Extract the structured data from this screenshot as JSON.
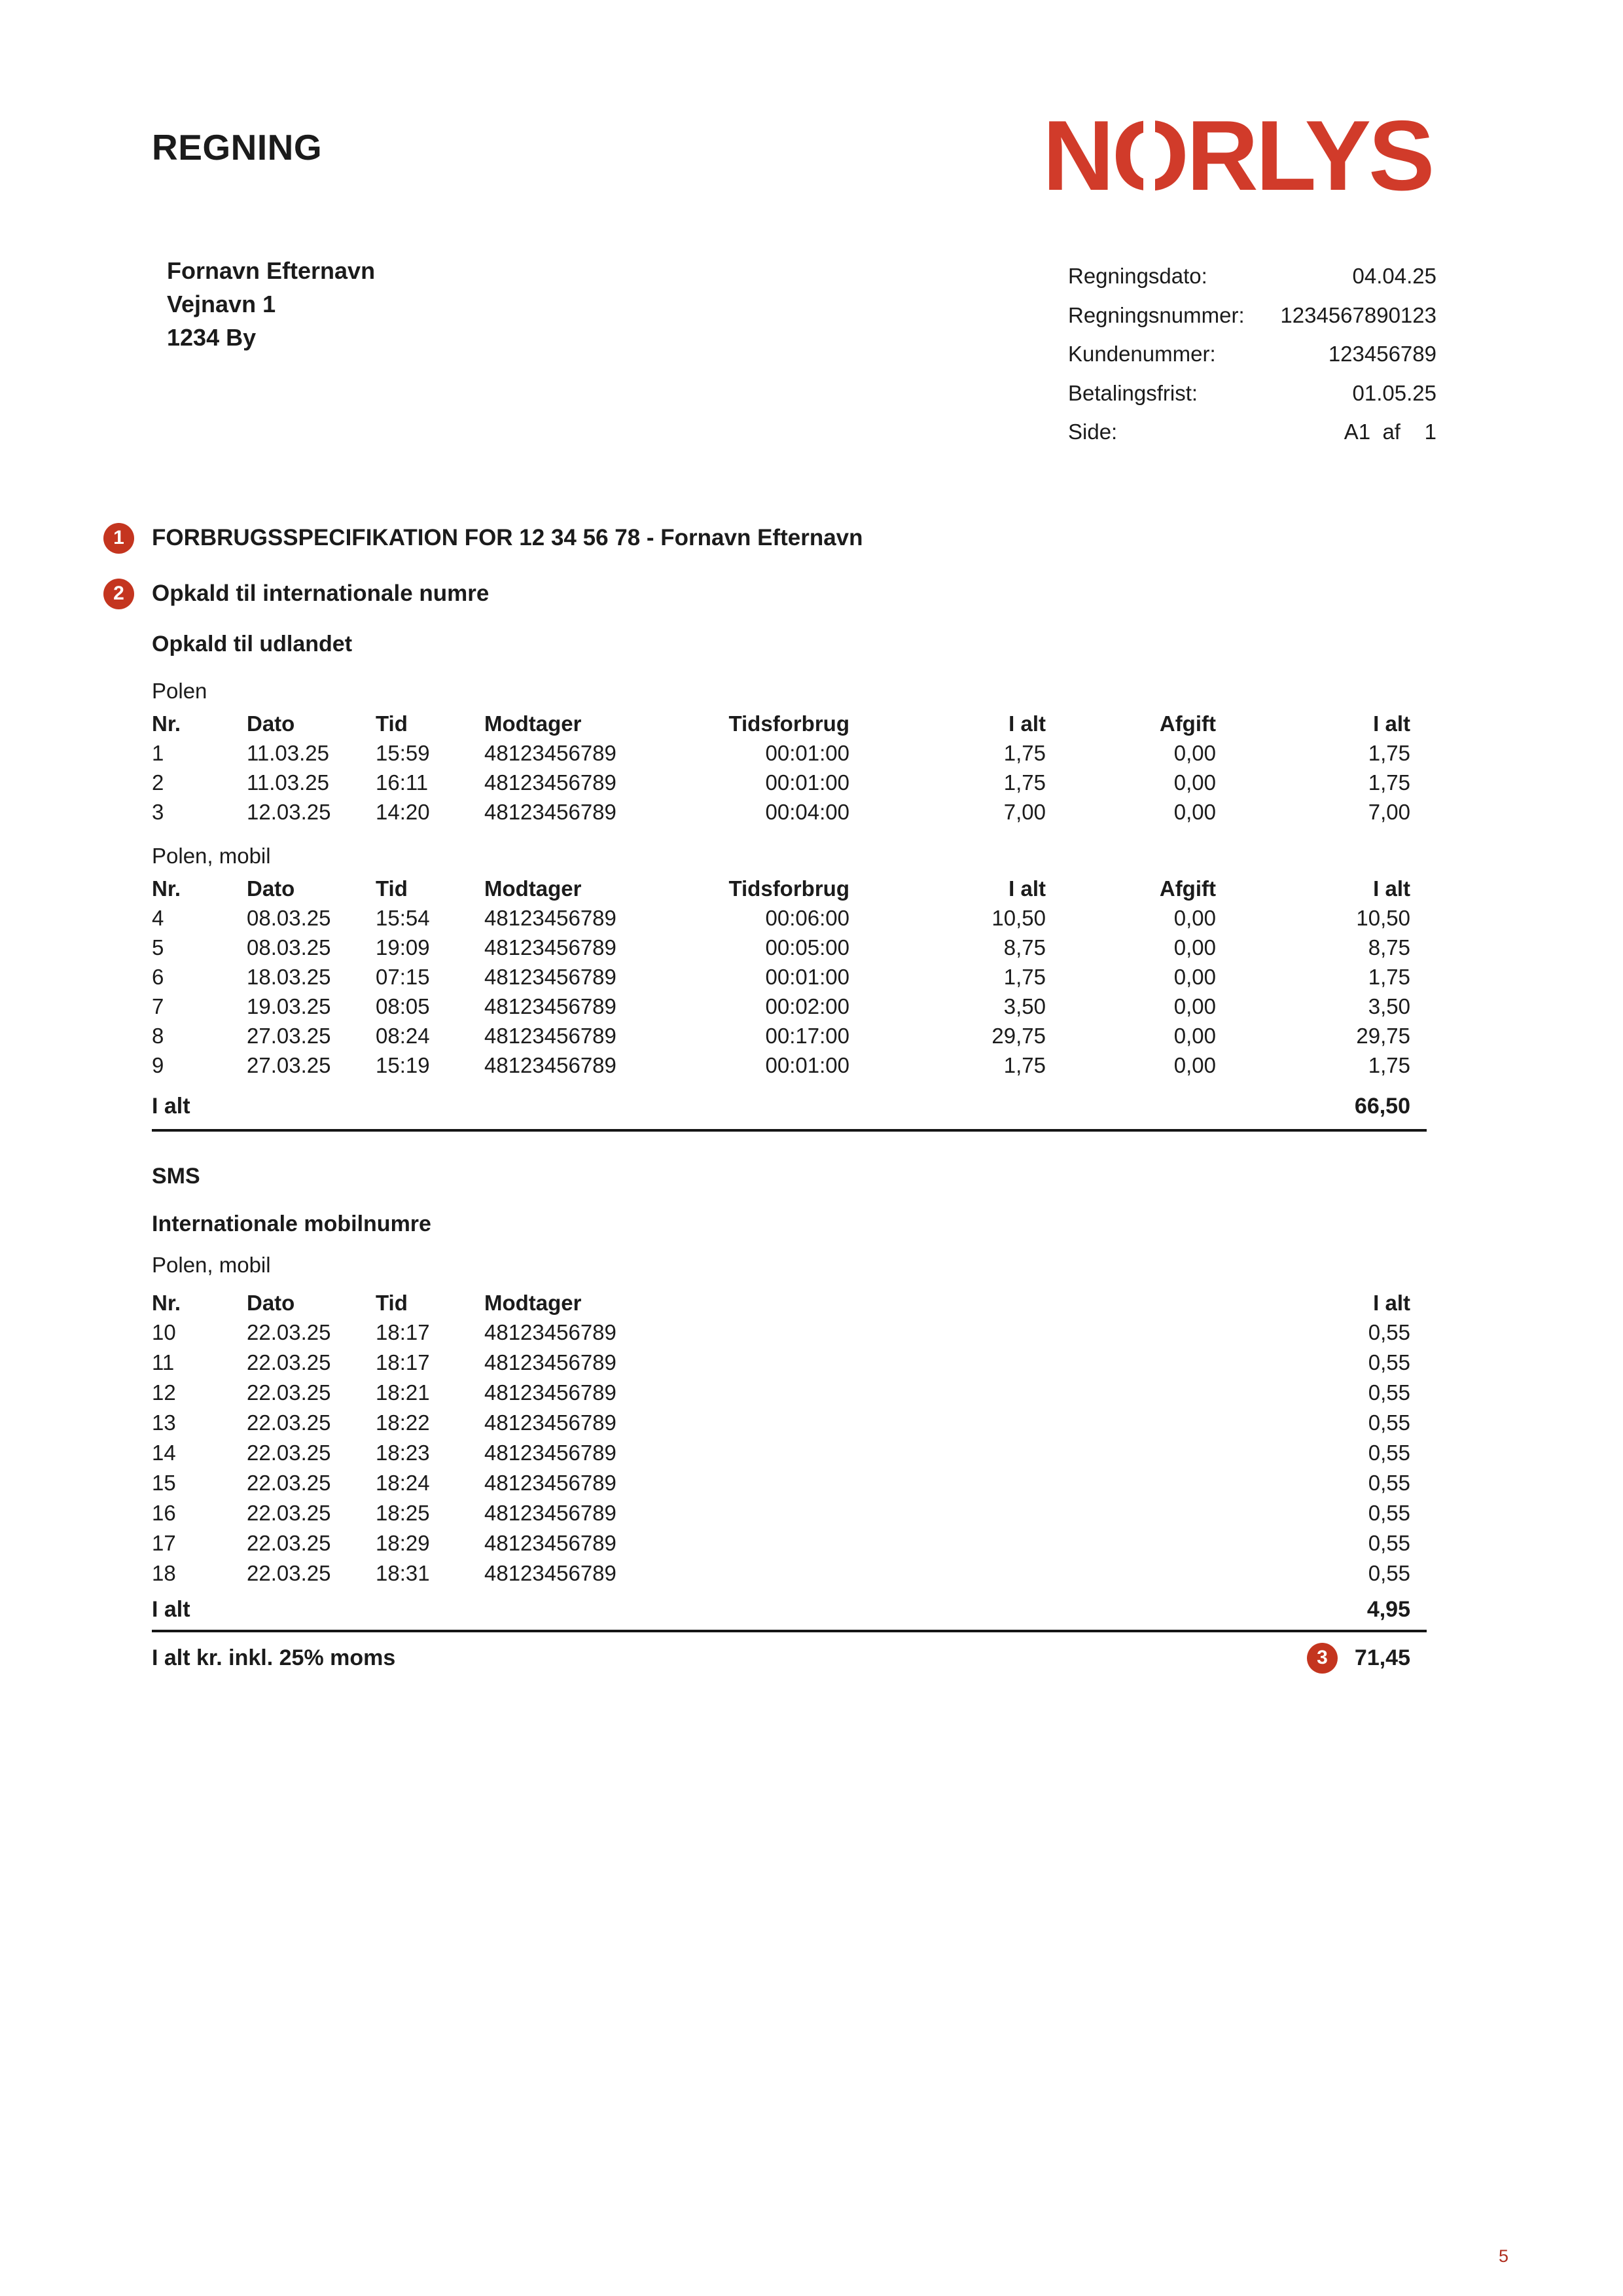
{
  "page": {
    "title": "REGNING",
    "page_number": "5"
  },
  "brand": {
    "name": "NORLYS",
    "n": "N",
    "o": "O",
    "rlys": "RLYS"
  },
  "colors": {
    "badge_red": "#c4351f",
    "logo_red": "#d13b2a",
    "text": "#1b1b1b",
    "pagenum_red": "#b02e1f"
  },
  "customer": {
    "name": "Fornavn Efternavn",
    "street": "Vejnavn 1",
    "city": "1234 By"
  },
  "meta": {
    "rows": [
      {
        "label": "Regningsdato:",
        "value": "04.04.25"
      },
      {
        "label": "Regningsnummer:",
        "value": "1234567890123"
      },
      {
        "label": "Kundenummer:",
        "value": "123456789"
      },
      {
        "label": "Betalingsfrist:",
        "value": "01.05.25"
      },
      {
        "label": "Side:",
        "value": "A1  af    1"
      }
    ]
  },
  "sections": {
    "spec": {
      "badge": "1",
      "title": "FORBRUGSSPECIFIKATION FOR 12 34 56 78 - Fornavn Efternavn"
    },
    "intl_calls": {
      "badge": "2",
      "title": "Opkald til internationale numre"
    },
    "calls_subtitle": "Opkald til udlandet",
    "sms_title": "SMS",
    "sms_subtitle": "Internationale mobilnumre"
  },
  "calls": {
    "headers": [
      "Nr.",
      "Dato",
      "Tid",
      "Modtager",
      "Tidsforbrug",
      "I alt",
      "Afgift",
      "I alt"
    ],
    "groups": [
      {
        "name": "Polen",
        "rows": [
          [
            "1",
            "11.03.25",
            "15:59",
            "48123456789",
            "00:01:00",
            "1,75",
            "0,00",
            "1,75"
          ],
          [
            "2",
            "11.03.25",
            "16:11",
            "48123456789",
            "00:01:00",
            "1,75",
            "0,00",
            "1,75"
          ],
          [
            "3",
            "12.03.25",
            "14:20",
            "48123456789",
            "00:04:00",
            "7,00",
            "0,00",
            "7,00"
          ]
        ]
      },
      {
        "name": "Polen, mobil",
        "rows": [
          [
            "4",
            "08.03.25",
            "15:54",
            "48123456789",
            "00:06:00",
            "10,50",
            "0,00",
            "10,50"
          ],
          [
            "5",
            "08.03.25",
            "19:09",
            "48123456789",
            "00:05:00",
            "8,75",
            "0,00",
            "8,75"
          ],
          [
            "6",
            "18.03.25",
            "07:15",
            "48123456789",
            "00:01:00",
            "1,75",
            "0,00",
            "1,75"
          ],
          [
            "7",
            "19.03.25",
            "08:05",
            "48123456789",
            "00:02:00",
            "3,50",
            "0,00",
            "3,50"
          ],
          [
            "8",
            "27.03.25",
            "08:24",
            "48123456789",
            "00:17:00",
            "29,75",
            "0,00",
            "29,75"
          ],
          [
            "9",
            "27.03.25",
            "15:19",
            "48123456789",
            "00:01:00",
            "1,75",
            "0,00",
            "1,75"
          ]
        ]
      }
    ],
    "total": {
      "label": "I alt",
      "value": "66,50"
    }
  },
  "sms": {
    "group": "Polen, mobil",
    "headers": [
      "Nr.",
      "Dato",
      "Tid",
      "Modtager",
      "I alt"
    ],
    "rows": [
      [
        "10",
        "22.03.25",
        "18:17",
        "48123456789",
        "0,55"
      ],
      [
        "11",
        "22.03.25",
        "18:17",
        "48123456789",
        "0,55"
      ],
      [
        "12",
        "22.03.25",
        "18:21",
        "48123456789",
        "0,55"
      ],
      [
        "13",
        "22.03.25",
        "18:22",
        "48123456789",
        "0,55"
      ],
      [
        "14",
        "22.03.25",
        "18:23",
        "48123456789",
        "0,55"
      ],
      [
        "15",
        "22.03.25",
        "18:24",
        "48123456789",
        "0,55"
      ],
      [
        "16",
        "22.03.25",
        "18:25",
        "48123456789",
        "0,55"
      ],
      [
        "17",
        "22.03.25",
        "18:29",
        "48123456789",
        "0,55"
      ],
      [
        "18",
        "22.03.25",
        "18:31",
        "48123456789",
        "0,55"
      ]
    ],
    "total": {
      "label": "I alt",
      "value": "4,95"
    }
  },
  "grand_total": {
    "label": "I alt kr. inkl. 25% moms",
    "badge": "3",
    "value": "71,45"
  }
}
